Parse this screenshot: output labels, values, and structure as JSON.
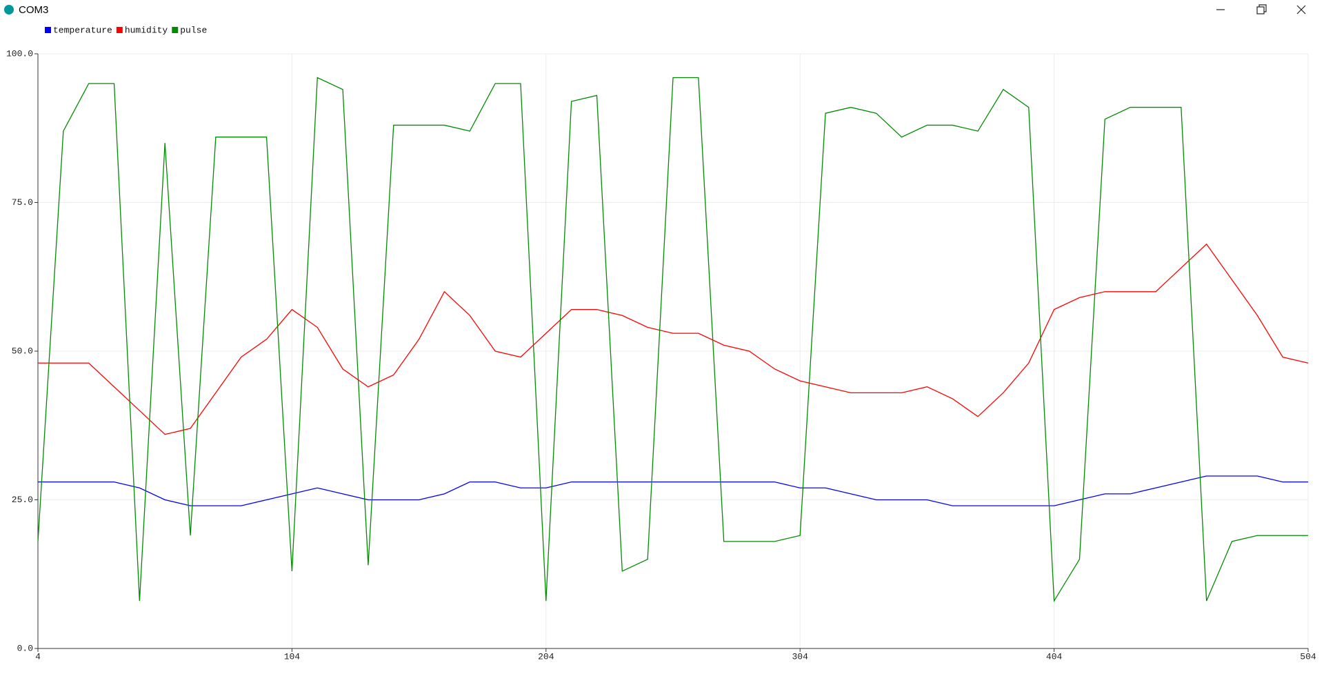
{
  "chart_data": {
    "type": "line",
    "title": "COM3",
    "x": [
      4,
      14,
      24,
      34,
      44,
      54,
      64,
      74,
      84,
      94,
      104,
      114,
      124,
      134,
      144,
      154,
      164,
      174,
      184,
      194,
      204,
      214,
      224,
      234,
      244,
      254,
      264,
      274,
      284,
      294,
      304,
      314,
      324,
      334,
      344,
      354,
      364,
      374,
      384,
      394,
      404,
      414,
      424,
      434,
      444,
      454,
      464,
      474,
      484,
      494,
      504
    ],
    "series": [
      {
        "name": "temperature",
        "color": "#0000ff",
        "values": [
          28,
          28,
          28,
          28,
          27,
          25,
          24,
          24,
          24,
          25,
          26,
          27,
          26,
          25,
          25,
          25,
          26,
          28,
          28,
          27,
          27,
          28,
          28,
          28,
          28,
          28,
          28,
          28,
          28,
          28,
          27,
          27,
          26,
          25,
          25,
          25,
          24,
          24,
          24,
          24,
          24,
          25,
          26,
          26,
          27,
          28,
          29,
          29,
          29,
          28,
          28
        ]
      },
      {
        "name": "humidity",
        "color": "#ff0000",
        "values": [
          48,
          48,
          48,
          44,
          40,
          36,
          37,
          43,
          49,
          52,
          57,
          54,
          47,
          44,
          46,
          52,
          60,
          56,
          50,
          49,
          53,
          57,
          57,
          56,
          54,
          53,
          53,
          51,
          50,
          47,
          45,
          44,
          43,
          43,
          43,
          44,
          42,
          39,
          43,
          48,
          57,
          59,
          60,
          60,
          60,
          64,
          68,
          62,
          56,
          49,
          48
        ]
      },
      {
        "name": "pulse",
        "color": "#008c00",
        "values": [
          18,
          87,
          95,
          95,
          8,
          85,
          19,
          86,
          86,
          86,
          13,
          96,
          94,
          14,
          88,
          88,
          88,
          87,
          95,
          95,
          8,
          92,
          93,
          13,
          15,
          96,
          96,
          18,
          18,
          18,
          19,
          90,
          91,
          90,
          86,
          88,
          88,
          87,
          94,
          91,
          8,
          15,
          89,
          91,
          91,
          91,
          8,
          18,
          19,
          19,
          19
        ]
      }
    ],
    "xlim": [
      4,
      504
    ],
    "xticks": [
      4,
      104,
      204,
      304,
      404,
      504
    ],
    "ylim": [
      0,
      100
    ],
    "yticks": [
      {
        "value": 0,
        "label": "0.0"
      },
      {
        "value": 25,
        "label": "25.0"
      },
      {
        "value": 50,
        "label": "50.0"
      },
      {
        "value": 75,
        "label": "75.0"
      },
      {
        "value": 100,
        "label": "100.0"
      }
    ],
    "grid": true
  }
}
